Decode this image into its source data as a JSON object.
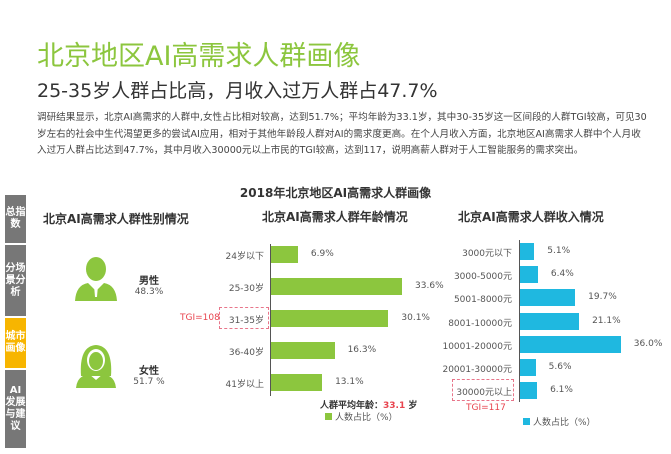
{
  "title": "北京地区AI高需求人群画像",
  "subtitle": "25-35岁人群占比高，月收入过万人群占47.7%",
  "paragraph": "调研结果显示，北京AI高需求的人群中,女性占比相对较高，达到51.7%；平均年龄为33.1岁，其中30-35岁这一区间段的人群TGI较高，可见30岁左右的社会中生代渴望更多的尝试AI应用，相对于其他年龄段人群对AI的需求度更高。在个人月收入方面，北京地区AI高需求人群中个人月收入过万人群占比达到47.7%，其中月收入30000元以上市民的TGI较高，达到117，说明高薪人群对于人工智能服务的需求突出。",
  "chart_title": "2018年北京地区AI高需求人群画像",
  "sidebar": [
    {
      "label": "总指数"
    },
    {
      "label": "分场景分析"
    },
    {
      "label": "城市画像",
      "active": true
    },
    {
      "label": "AI发展与建议"
    }
  ],
  "colors": {
    "green": "#8cc63e",
    "blue": "#1fb8e0",
    "red": "#e8454f",
    "active": "#f7b500"
  },
  "gender": {
    "title": "北京AI高需求人群性别情况",
    "male_label": "男性",
    "male_value": "48.3%",
    "female_label": "女性",
    "female_value": "51.7 %"
  },
  "chart_data": [
    {
      "type": "bar",
      "title": "北京AI高需求人群年龄情况",
      "categories": [
        "24岁以下",
        "25-30岁",
        "31-35岁",
        "36-40岁",
        "41岁以上"
      ],
      "values": [
        6.9,
        33.6,
        30.1,
        16.3,
        13.1
      ],
      "value_labels": [
        "6.9%",
        "33.6%",
        "30.1%",
        "16.3%",
        "13.1%"
      ],
      "legend": "人数占比（%）",
      "annotation": "TGI=108",
      "avg_label": "人群平均年龄：",
      "avg_value": "33.1",
      "avg_unit": "岁"
    },
    {
      "type": "bar",
      "title": "北京AI高需求人群收入情况",
      "categories": [
        "3000元以下",
        "3000-5000元",
        "5001-8000元",
        "8001-10000元",
        "10001-20000元",
        "20001-30000元",
        "30000元以上"
      ],
      "values": [
        5.1,
        6.4,
        19.7,
        21.1,
        36.0,
        5.6,
        6.1
      ],
      "value_labels": [
        "5.1%",
        "6.4%",
        "19.7%",
        "21.1%",
        "36.0%",
        "5.6%",
        "6.1%"
      ],
      "legend": "人数占比（%）",
      "annotation": "TGI=117"
    }
  ]
}
